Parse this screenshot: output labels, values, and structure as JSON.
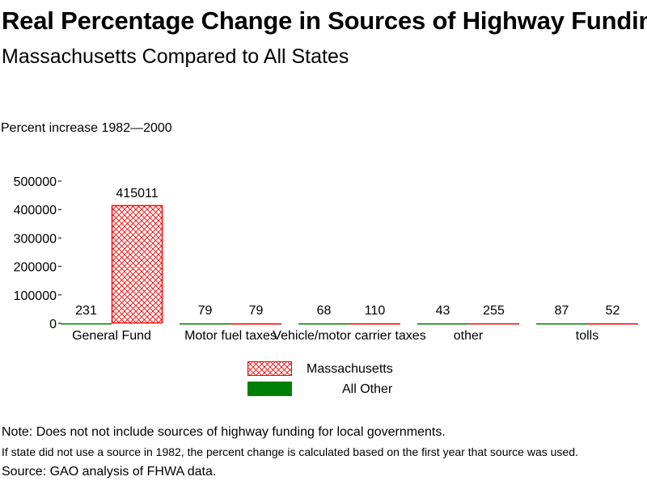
{
  "title": "Real Percentage Change in Sources of Highway Funding",
  "subtitle": "Massachusetts Compared to All States",
  "chart_data": {
    "type": "bar",
    "ylabel": "Percent increase 1982—2000",
    "xlabel": "",
    "categories": [
      "General Fund",
      "Motor fuel taxes",
      "Vehicle/motor carrier taxes",
      "other",
      "tolls"
    ],
    "series": [
      {
        "name": "All Other",
        "values": [
          231,
          79,
          68,
          43,
          87
        ],
        "color": "#008000",
        "pattern": "solid"
      },
      {
        "name": "Massachusetts",
        "values": [
          415011,
          79,
          110,
          255,
          52
        ],
        "color": "#ff0000",
        "pattern": "crosshatch"
      }
    ],
    "ylim": [
      0,
      500000
    ],
    "yticks": [
      "500000",
      "400000",
      "300000",
      "200000",
      "100000",
      "0"
    ],
    "grid": false,
    "legend_placement": "bottom"
  },
  "notes": {
    "note1": "Note: Does not not include sources of highway funding for local governments.",
    "note2": "If state did not use a source in 1982, the percent change is calculated based on the first year that source was used.",
    "note3": "Source: GAO analysis of FHWA data."
  },
  "legend": [
    {
      "label": "Massachusetts",
      "color": "#ff0000",
      "pattern": "crosshatch"
    },
    {
      "label": "All Other",
      "color": "#008000",
      "pattern": "solid"
    }
  ]
}
